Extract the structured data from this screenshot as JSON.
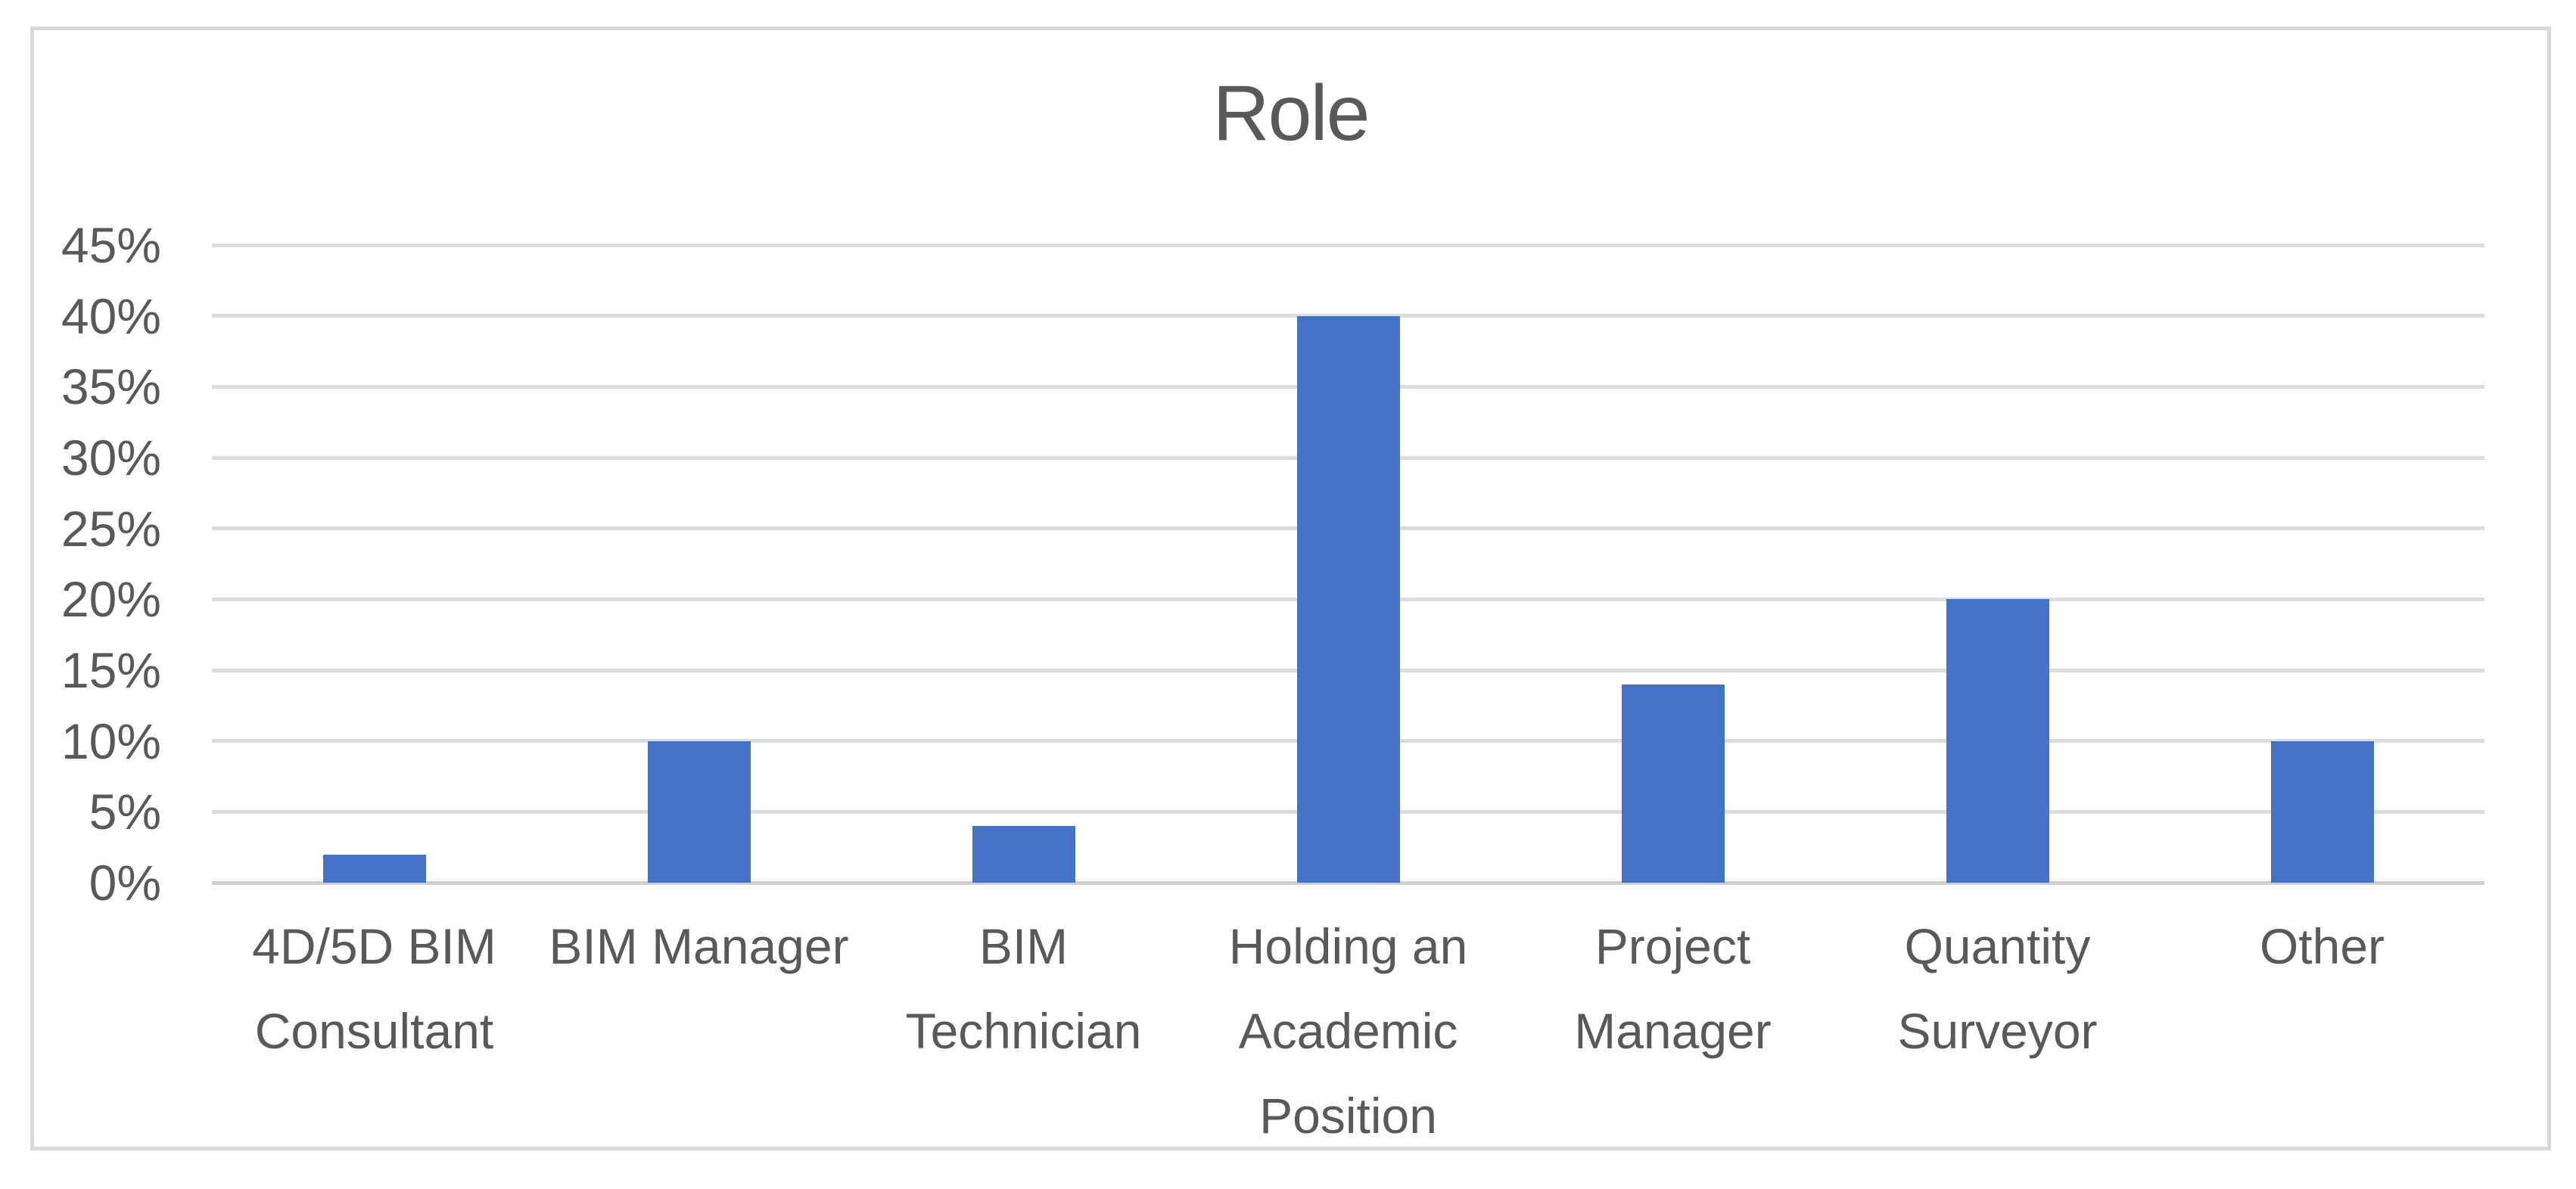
{
  "chart_data": {
    "type": "bar",
    "title": "Role",
    "categories": [
      "4D/5D BIM Consultant",
      "BIM Manager",
      "BIM Technician",
      "Holding an Academic Position",
      "Project Manager",
      "Quantity Surveyor",
      "Other"
    ],
    "values": [
      2,
      10,
      4,
      40,
      14,
      20,
      10
    ],
    "unit": "%",
    "xlabel": "",
    "ylabel": "",
    "ylim": [
      0,
      45
    ],
    "ytick_step": 5,
    "ytick_labels": [
      "0%",
      "5%",
      "10%",
      "15%",
      "20%",
      "25%",
      "30%",
      "35%",
      "40%",
      "45%"
    ],
    "grid": true,
    "legend_position": "none",
    "colors": {
      "bar": "#4472C4",
      "text": "#595959",
      "gridline": "#DCDCDC",
      "axis_line": "#D0CECE",
      "frame_border": "#D9D9D9",
      "background": "#FFFFFF"
    }
  }
}
